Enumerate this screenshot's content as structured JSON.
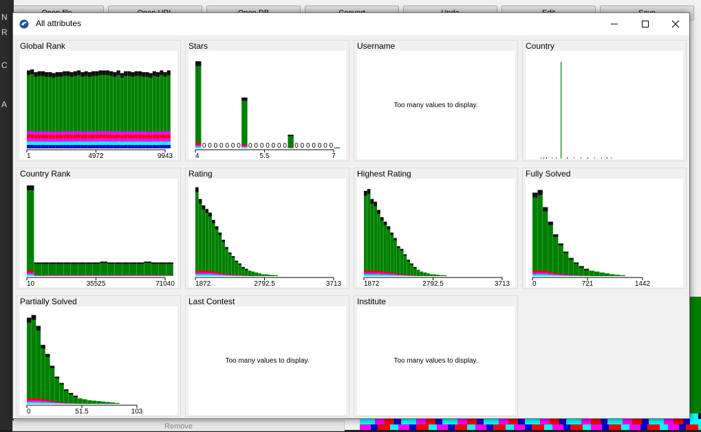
{
  "background": {
    "toolbar_buttons": [
      "Open file",
      "Open URL",
      "Open DB",
      "Convert",
      "Undo",
      "Edit",
      "Save"
    ],
    "left_letters": [
      "N",
      "R",
      "C",
      "A"
    ],
    "remove_label": "Remove"
  },
  "window": {
    "title": "All attributes",
    "icons": {
      "app": "weka-bird-icon",
      "minimize": "minimize-icon",
      "maximize": "maximize-icon",
      "close": "close-icon"
    }
  },
  "too_many_text": "Too many values to display.",
  "colors": {
    "main": "#008000",
    "dark": "#111111",
    "magenta": "#ff00ff",
    "cyan": "#00ffff",
    "red": "#ff0000",
    "blue": "#0000cc"
  },
  "panels": [
    {
      "title": "Global Rank",
      "chart_data": {
        "type": "bar",
        "stacked": true,
        "ticks": [
          "1",
          "4972",
          "9943"
        ],
        "values": [
          0.86,
          0.87,
          0.84,
          0.85,
          0.85,
          0.84,
          0.84,
          0.83,
          0.84,
          0.84,
          0.85,
          0.85,
          0.84,
          0.85,
          0.86,
          0.84,
          0.85,
          0.84,
          0.85,
          0.85,
          0.86,
          0.86,
          0.86,
          0.85,
          0.84,
          0.86,
          0.83,
          0.85,
          0.85,
          0.84,
          0.85,
          0.85,
          0.84,
          0.84,
          0.83,
          0.85,
          0.84,
          0.86,
          0.84,
          0.86
        ]
      }
    },
    {
      "title": "Stars",
      "chart_data": {
        "type": "bar",
        "stacked": true,
        "ticks": [
          "4",
          "5.5",
          "7"
        ],
        "values": [
          0.96,
          0,
          0,
          0,
          0,
          0,
          0,
          0,
          0.56,
          0,
          0,
          0,
          0,
          0,
          0,
          0,
          0.15,
          0,
          0,
          0,
          0,
          0,
          0,
          0,
          0.01
        ],
        "zero_label": "0"
      }
    },
    {
      "title": "Username",
      "too_many": true
    },
    {
      "title": "Country",
      "chart_data": {
        "type": "bar",
        "ticks": [],
        "peak": 1.0
      }
    },
    {
      "title": "Country Rank",
      "chart_data": {
        "type": "bar",
        "stacked": true,
        "ticks": [
          "10",
          "35525",
          "71040"
        ],
        "values": [
          1.0,
          0.15,
          0.15,
          0.15,
          0.15,
          0.15,
          0.15,
          0.15,
          0.15,
          0.15,
          0.16,
          0.15,
          0.15,
          0.15,
          0.15,
          0.15,
          0.16,
          0.15,
          0.15,
          0.15
        ]
      }
    },
    {
      "title": "Rating",
      "chart_data": {
        "type": "bar",
        "stacked": true,
        "ticks": [
          "1872",
          "2792.5",
          "3713"
        ],
        "values": [
          0.98,
          0.85,
          0.78,
          0.74,
          0.7,
          0.62,
          0.55,
          0.48,
          0.4,
          0.32,
          0.26,
          0.22,
          0.17,
          0.14,
          0.1,
          0.08,
          0.06,
          0.05,
          0.04,
          0.03,
          0.02,
          0.02,
          0.015,
          0.012,
          0.01
        ]
      }
    },
    {
      "title": "Highest Rating",
      "chart_data": {
        "type": "bar",
        "stacked": true,
        "ticks": [
          "1872",
          "2792.5",
          "3713"
        ],
        "values": [
          0.94,
          0.96,
          0.85,
          0.82,
          0.73,
          0.65,
          0.6,
          0.55,
          0.48,
          0.42,
          0.33,
          0.3,
          0.24,
          0.18,
          0.14,
          0.1,
          0.07,
          0.05,
          0.04,
          0.03,
          0.02,
          0.02,
          0.015,
          0.01,
          0.01
        ]
      }
    },
    {
      "title": "Fully Solved",
      "chart_data": {
        "type": "bar",
        "stacked": true,
        "ticks": [
          "0",
          "721",
          "1442"
        ],
        "values": [
          0.92,
          0.95,
          0.76,
          0.6,
          0.46,
          0.36,
          0.27,
          0.2,
          0.15,
          0.11,
          0.08,
          0.06,
          0.05,
          0.04,
          0.03,
          0.02,
          0.015,
          0.01
        ]
      }
    },
    {
      "title": "Partially Solved",
      "chart_data": {
        "type": "bar",
        "stacked": true,
        "ticks": [
          "0",
          "51.5",
          "103"
        ],
        "values": [
          0.95,
          0.98,
          0.86,
          0.65,
          0.55,
          0.42,
          0.3,
          0.23,
          0.16,
          0.12,
          0.09,
          0.06,
          0.05,
          0.04,
          0.035,
          0.03,
          0.025,
          0.02,
          0.015,
          0.01
        ]
      }
    },
    {
      "title": "Last Contest",
      "too_many": true
    },
    {
      "title": "Institute",
      "too_many": true
    }
  ]
}
